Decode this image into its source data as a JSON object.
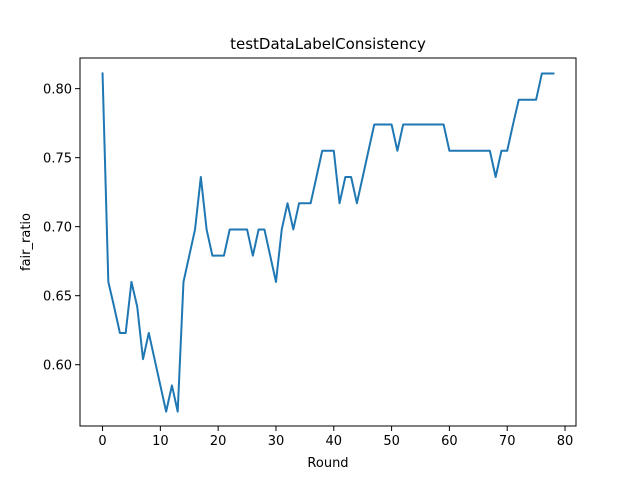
{
  "chart_data": {
    "type": "line",
    "title": "testDataLabelConsistency",
    "xlabel": "Round",
    "ylabel": "fair_ratio",
    "xlim": [
      -3.9,
      81.9
    ],
    "ylim": [
      0.5556,
      0.8222
    ],
    "xticks": [
      0,
      10,
      20,
      30,
      40,
      50,
      60,
      70,
      80
    ],
    "yticks": [
      0.6,
      0.65,
      0.7,
      0.75,
      0.8
    ],
    "grid": false,
    "series": [
      {
        "color": "#1f77b4",
        "x": [
          0,
          1,
          2,
          3,
          4,
          5,
          6,
          7,
          8,
          9,
          10,
          11,
          12,
          13,
          14,
          15,
          16,
          17,
          18,
          19,
          20,
          21,
          22,
          23,
          24,
          25,
          26,
          27,
          28,
          29,
          30,
          31,
          32,
          33,
          34,
          35,
          36,
          37,
          38,
          39,
          40,
          41,
          42,
          43,
          44,
          45,
          46,
          47,
          48,
          49,
          50,
          51,
          52,
          53,
          54,
          55,
          56,
          57,
          58,
          59,
          60,
          61,
          62,
          63,
          64,
          65,
          66,
          67,
          68,
          69,
          70,
          71,
          72,
          73,
          74,
          75,
          76,
          77,
          78
        ],
        "y": [
          0.811,
          0.66,
          0.642,
          0.623,
          0.623,
          0.66,
          0.642,
          0.604,
          0.623,
          0.604,
          0.585,
          0.566,
          0.585,
          0.566,
          0.66,
          0.679,
          0.698,
          0.736,
          0.698,
          0.679,
          0.679,
          0.679,
          0.698,
          0.698,
          0.698,
          0.698,
          0.679,
          0.698,
          0.698,
          0.679,
          0.66,
          0.698,
          0.717,
          0.698,
          0.717,
          0.717,
          0.717,
          0.736,
          0.755,
          0.755,
          0.755,
          0.717,
          0.736,
          0.736,
          0.717,
          0.736,
          0.755,
          0.774,
          0.774,
          0.774,
          0.774,
          0.755,
          0.774,
          0.774,
          0.774,
          0.774,
          0.774,
          0.774,
          0.774,
          0.774,
          0.755,
          0.755,
          0.755,
          0.755,
          0.755,
          0.755,
          0.755,
          0.755,
          0.736,
          0.755,
          0.755,
          0.774,
          0.792,
          0.792,
          0.792,
          0.792,
          0.811,
          0.811,
          0.811
        ]
      }
    ]
  }
}
